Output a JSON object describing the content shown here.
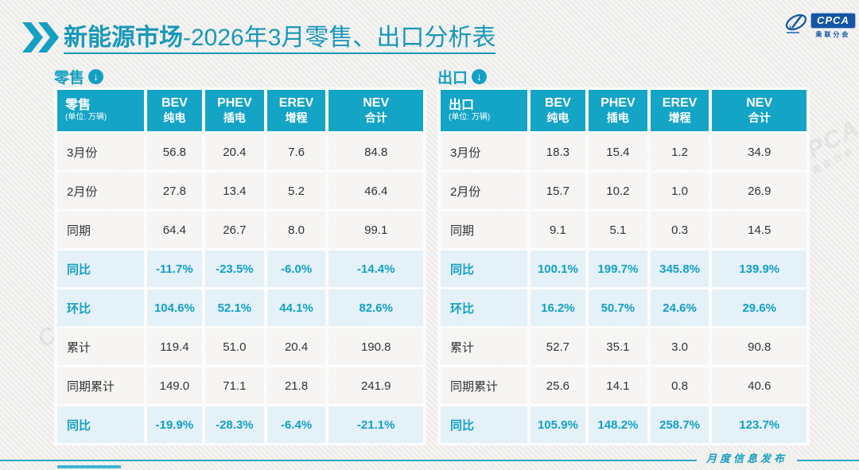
{
  "colors": {
    "accent": "#13a0c2",
    "header_bg": "#14a4c6",
    "highlight_row_bg": "#e4f1f8",
    "title": "#1898ba",
    "logo_blue": "#1356a5"
  },
  "title": {
    "bold": "新能源市场",
    "rest": "-2026年3月零售、出口分析表"
  },
  "logo": {
    "text": "CPCA",
    "subtext": "乘联分会"
  },
  "watermark": {
    "line1": "CPCA",
    "line2": "乘联分会"
  },
  "footer": {
    "label": "月度信息发布"
  },
  "download_icon": "↓",
  "tables": [
    {
      "section_label": "零售",
      "header": {
        "label": "零售",
        "unit": "(单位: 万辆)",
        "columns": [
          {
            "en": "BEV",
            "cn": "纯电"
          },
          {
            "en": "PHEV",
            "cn": "插电"
          },
          {
            "en": "EREV",
            "cn": "增程"
          },
          {
            "en": "NEV",
            "cn": "合计"
          }
        ]
      },
      "rows": [
        {
          "label": "3月份",
          "values": [
            "56.8",
            "20.4",
            "7.6",
            "84.8"
          ],
          "highlight": false
        },
        {
          "label": "2月份",
          "values": [
            "27.8",
            "13.4",
            "5.2",
            "46.4"
          ],
          "highlight": false
        },
        {
          "label": "同期",
          "values": [
            "64.4",
            "26.7",
            "8.0",
            "99.1"
          ],
          "highlight": false
        },
        {
          "label": "同比",
          "values": [
            "-11.7%",
            "-23.5%",
            "-6.0%",
            "-14.4%"
          ],
          "highlight": true
        },
        {
          "label": "环比",
          "values": [
            "104.6%",
            "52.1%",
            "44.1%",
            "82.6%"
          ],
          "highlight": true
        },
        {
          "label": "累计",
          "values": [
            "119.4",
            "51.0",
            "20.4",
            "190.8"
          ],
          "highlight": false
        },
        {
          "label": "同期累计",
          "values": [
            "149.0",
            "71.1",
            "21.8",
            "241.9"
          ],
          "highlight": false
        },
        {
          "label": "同比",
          "values": [
            "-19.9%",
            "-28.3%",
            "-6.4%",
            "-21.1%"
          ],
          "highlight": true
        }
      ]
    },
    {
      "section_label": "出口",
      "header": {
        "label": "出口",
        "unit": "(单位: 万辆)",
        "columns": [
          {
            "en": "BEV",
            "cn": "纯电"
          },
          {
            "en": "PHEV",
            "cn": "插电"
          },
          {
            "en": "EREV",
            "cn": "增程"
          },
          {
            "en": "NEV",
            "cn": "合计"
          }
        ]
      },
      "rows": [
        {
          "label": "3月份",
          "values": [
            "18.3",
            "15.4",
            "1.2",
            "34.9"
          ],
          "highlight": false
        },
        {
          "label": "2月份",
          "values": [
            "15.7",
            "10.2",
            "1.0",
            "26.9"
          ],
          "highlight": false
        },
        {
          "label": "同期",
          "values": [
            "9.1",
            "5.1",
            "0.3",
            "14.5"
          ],
          "highlight": false
        },
        {
          "label": "同比",
          "values": [
            "100.1%",
            "199.7%",
            "345.8%",
            "139.9%"
          ],
          "highlight": true
        },
        {
          "label": "环比",
          "values": [
            "16.2%",
            "50.7%",
            "24.6%",
            "29.6%"
          ],
          "highlight": true
        },
        {
          "label": "累计",
          "values": [
            "52.7",
            "35.1",
            "3.0",
            "90.8"
          ],
          "highlight": false
        },
        {
          "label": "同期累计",
          "values": [
            "25.6",
            "14.1",
            "0.8",
            "40.6"
          ],
          "highlight": false
        },
        {
          "label": "同比",
          "values": [
            "105.9%",
            "148.2%",
            "258.7%",
            "123.7%"
          ],
          "highlight": true
        }
      ]
    }
  ]
}
